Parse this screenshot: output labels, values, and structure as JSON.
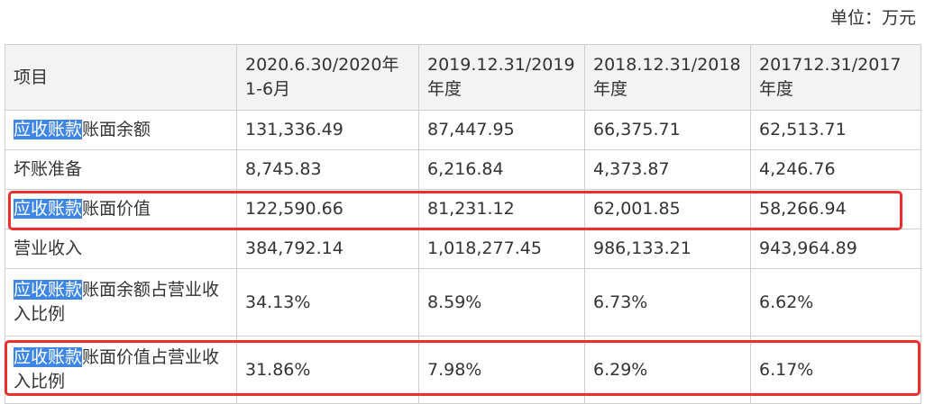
{
  "unit_label": "单位：万元",
  "header": {
    "item": "项目",
    "col1": "2020.6.30/2020年 1-6月",
    "col2": "2019.12.31/2019 年度",
    "col3": "2018.12.31/2018 年度",
    "col4": "201712.31/2017 年度"
  },
  "highlight_term": "应收账款",
  "rows": [
    {
      "label_rest": "账面余额",
      "values": [
        "131,336.49",
        "87,447.95",
        "66,375.71",
        "62,513.71"
      ]
    },
    {
      "label": "坏账准备",
      "values": [
        "8,745.83",
        "6,216.84",
        "4,373.87",
        "4,246.76"
      ]
    },
    {
      "label_rest": "账面价值",
      "values": [
        "122,590.66",
        "81,231.12",
        "62,001.85",
        "58,266.94"
      ]
    },
    {
      "label": "营业收入",
      "values": [
        "384,792.14",
        "1,018,277.45",
        "986,133.21",
        "943,964.89"
      ]
    },
    {
      "label_rest": "账面余额占营业收入比例",
      "values": [
        "34.13%",
        "8.59%",
        "6.73%",
        "6.62%"
      ]
    },
    {
      "label_rest": "账面价值占营业收入比例",
      "values": [
        "31.86%",
        "7.98%",
        "6.29%",
        "6.17%"
      ]
    }
  ],
  "colors": {
    "highlight": "#3d86e6",
    "annotation_box": "#ee2d2d"
  }
}
